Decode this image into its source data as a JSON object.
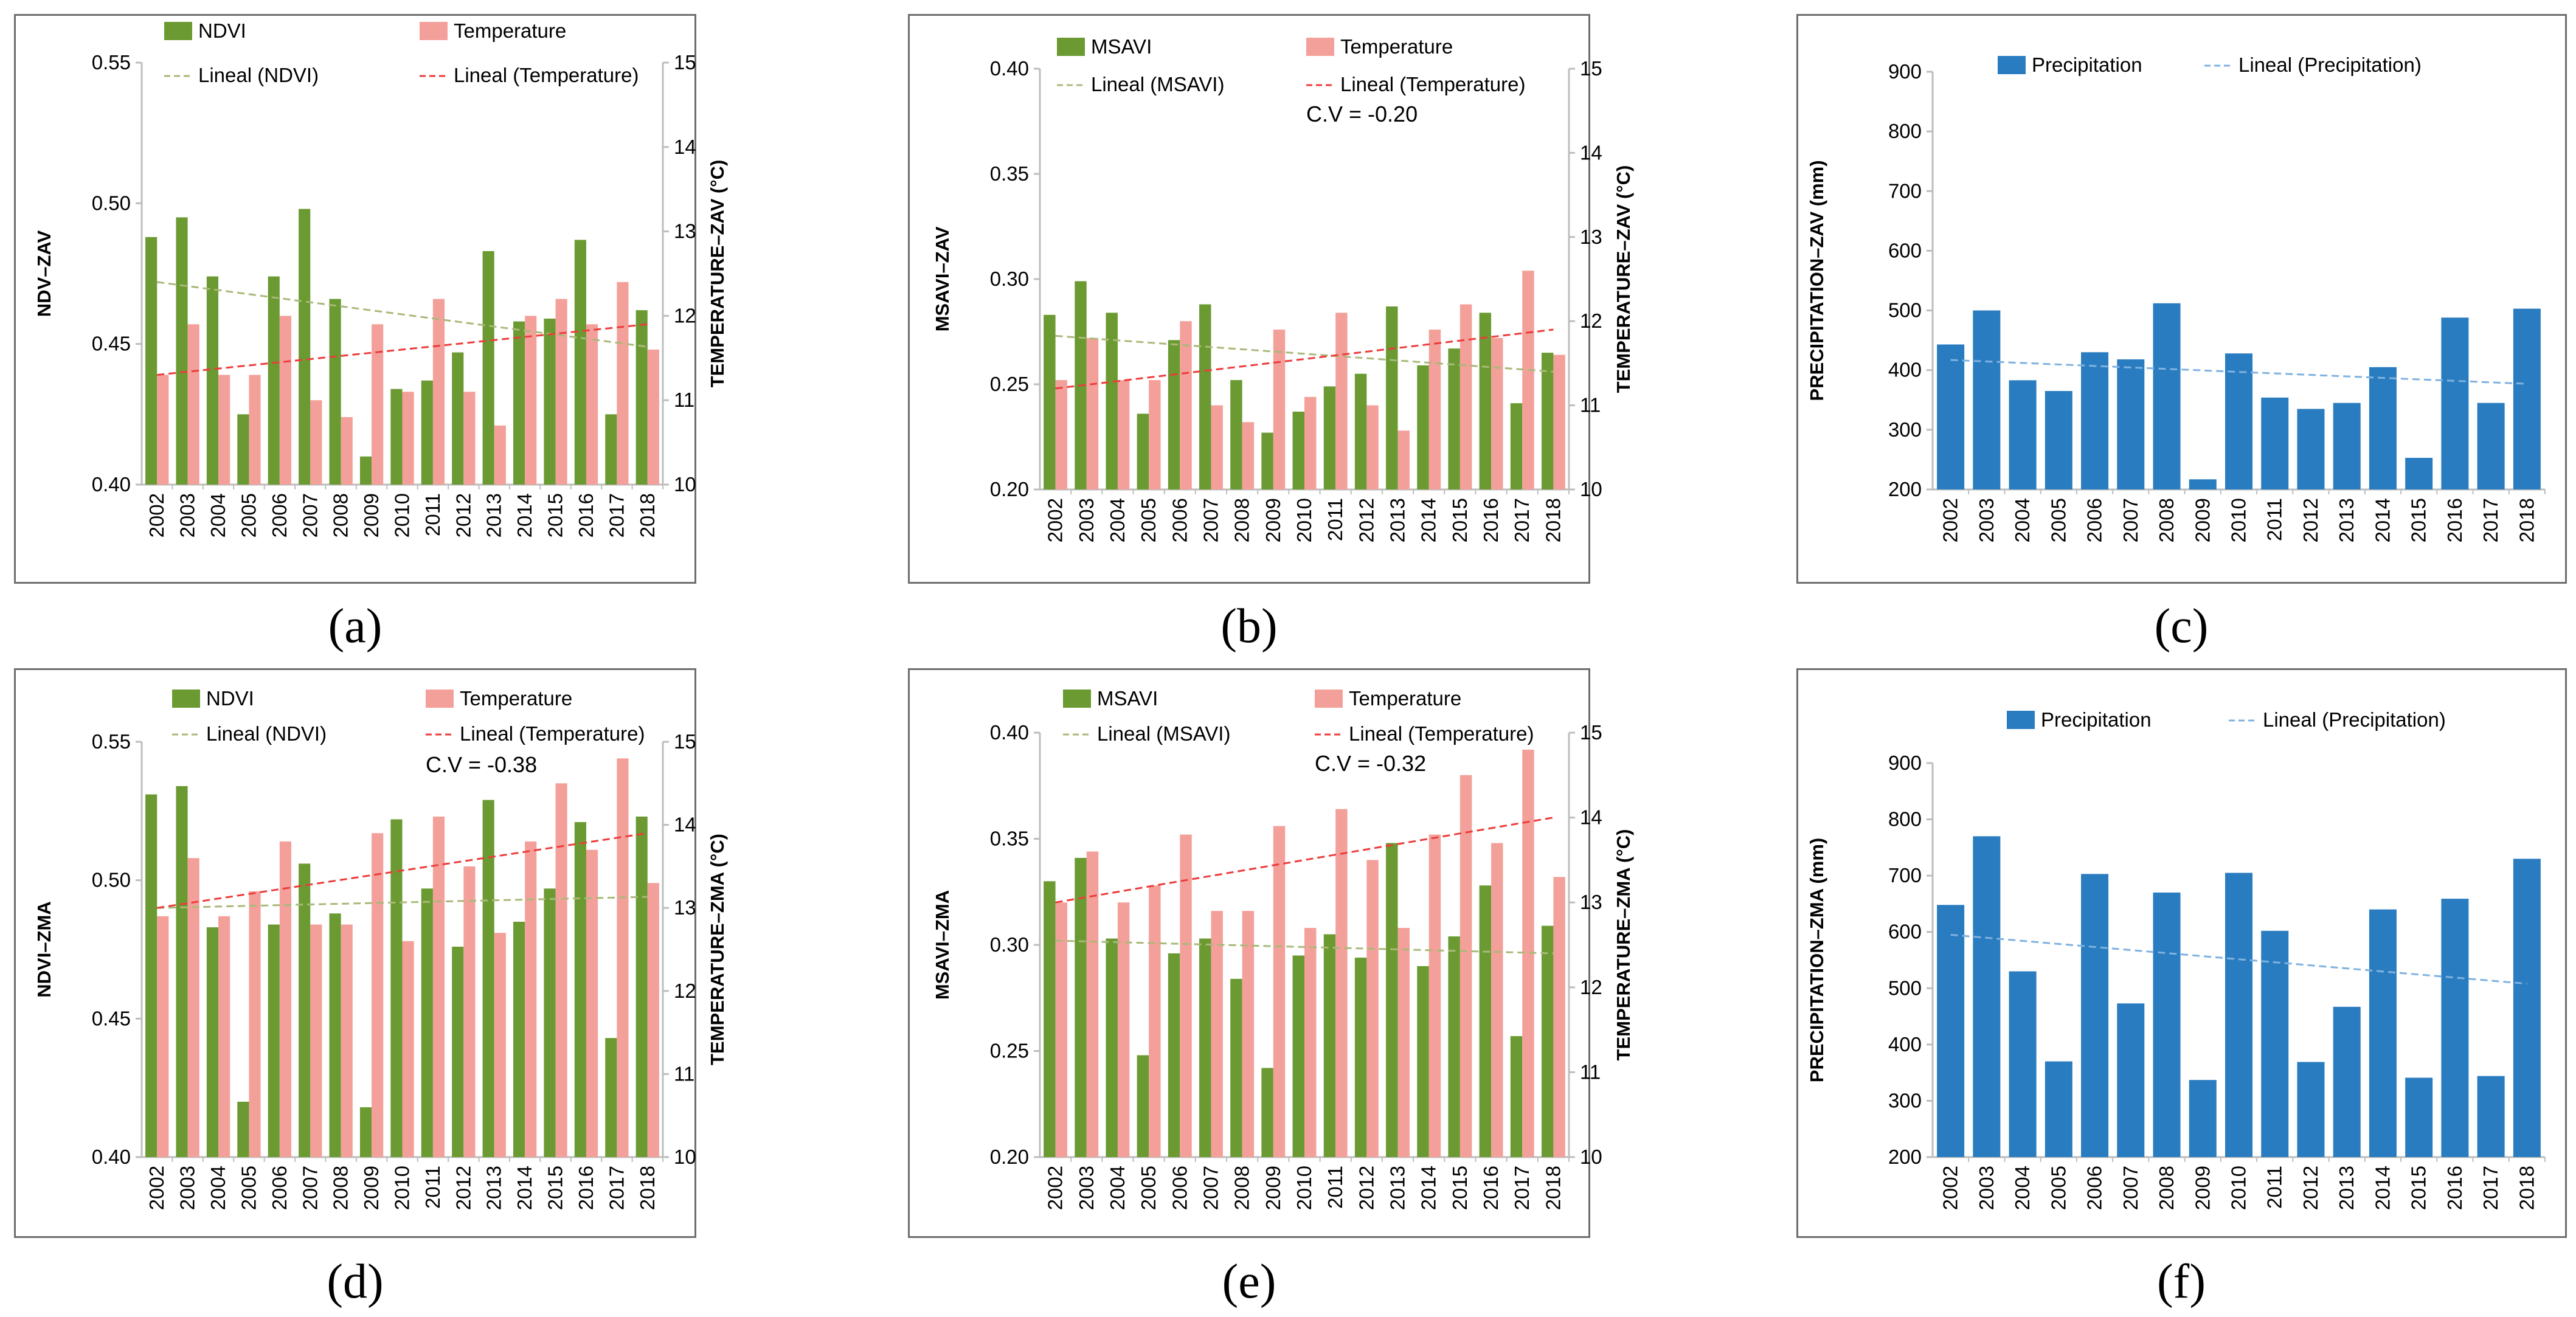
{
  "colors": {
    "ndvi": "#6a9a31",
    "msavi": "#6a9a31",
    "temperature": "#f4a09a",
    "precipitation": "#2a7cc0",
    "trend_veg": "#a9b97a",
    "trend_temp": "#ee3b3b",
    "trend_precip": "#7fb2e0"
  },
  "panel_labels": [
    "(a)",
    "(b)",
    "(c)",
    "(d)",
    "(e)",
    "(f)"
  ],
  "chart_data": [
    {
      "type": "bar",
      "panel": "a",
      "categories": [
        "2002",
        "2003",
        "2004",
        "2005",
        "2006",
        "2007",
        "2008",
        "2009",
        "2010",
        "2011",
        "2012",
        "2013",
        "2014",
        "2015",
        "2016",
        "2017",
        "2018"
      ],
      "ylabel": "NDV–ZAV",
      "y2label": "TEMPERATURE–ZAV (°C)",
      "ylim": [
        0.4,
        0.55
      ],
      "yticks": [
        "0.40",
        "0.45",
        "0.50",
        "0.55"
      ],
      "y2lim": [
        10,
        15
      ],
      "y2ticks": [
        "10",
        "11",
        "12",
        "13",
        "14",
        "15"
      ],
      "cv": "",
      "series": [
        {
          "name": "NDVI",
          "kind": "bar",
          "axis": "left",
          "color_key": "ndvi",
          "values": [
            0.488,
            0.495,
            0.474,
            0.425,
            0.474,
            0.498,
            0.466,
            0.41,
            0.434,
            0.437,
            0.447,
            0.483,
            0.458,
            0.459,
            0.487,
            0.425,
            0.462
          ]
        },
        {
          "name": "Temperature",
          "kind": "bar",
          "axis": "right",
          "color_key": "temperature",
          "values": [
            11.3,
            11.9,
            11.3,
            11.3,
            12.0,
            11.0,
            10.8,
            11.9,
            11.1,
            12.2,
            11.1,
            10.7,
            12.0,
            12.2,
            11.9,
            12.4,
            11.6
          ]
        },
        {
          "name": "Lineal (NDVI)",
          "kind": "trend",
          "axis": "left",
          "color_key": "trend_veg",
          "from": 0.472,
          "to": 0.449
        },
        {
          "name": "Lineal (Temperature)",
          "kind": "trend",
          "axis": "right",
          "color_key": "trend_temp",
          "from": 11.3,
          "to": 11.9
        }
      ]
    },
    {
      "type": "bar",
      "panel": "b",
      "categories": [
        "2002",
        "2003",
        "2004",
        "2005",
        "2006",
        "2007",
        "2008",
        "2009",
        "2010",
        "2011",
        "2012",
        "2013",
        "2014",
        "2015",
        "2016",
        "2017",
        "2018"
      ],
      "ylabel": "MSAVI–ZAV",
      "y2label": "TEMPERATURE–ZAV (°C)",
      "ylim": [
        0.2,
        0.4
      ],
      "yticks": [
        "0.20",
        "0.25",
        "0.30",
        "0.35",
        "0.40"
      ],
      "y2lim": [
        10,
        15
      ],
      "y2ticks": [
        "10",
        "11",
        "12",
        "13",
        "14",
        "15"
      ],
      "cv": "C.V = -0.20",
      "series": [
        {
          "name": "MSAVI",
          "kind": "bar",
          "axis": "left",
          "color_key": "msavi",
          "values": [
            0.283,
            0.299,
            0.284,
            0.236,
            0.271,
            0.288,
            0.252,
            0.227,
            0.237,
            0.249,
            0.255,
            0.287,
            0.259,
            0.267,
            0.284,
            0.241,
            0.265
          ]
        },
        {
          "name": "Temperature",
          "kind": "bar",
          "axis": "right",
          "color_key": "temperature",
          "values": [
            11.3,
            11.8,
            11.3,
            11.3,
            12.0,
            11.0,
            10.8,
            11.9,
            11.1,
            12.1,
            11.0,
            10.7,
            11.9,
            12.2,
            11.8,
            12.6,
            11.6
          ]
        },
        {
          "name": "Lineal (MSAVI)",
          "kind": "trend",
          "axis": "left",
          "color_key": "trend_veg",
          "from": 0.273,
          "to": 0.256
        },
        {
          "name": "Lineal (Temperature)",
          "kind": "trend",
          "axis": "right",
          "color_key": "trend_temp",
          "from": 11.2,
          "to": 11.9
        }
      ]
    },
    {
      "type": "bar",
      "panel": "c",
      "categories": [
        "2002",
        "2003",
        "2004",
        "2005",
        "2006",
        "2007",
        "2008",
        "2009",
        "2010",
        "2011",
        "2012",
        "2013",
        "2014",
        "2015",
        "2016",
        "2017",
        "2018"
      ],
      "ylabel": "PRECIPITATION–ZAV (mm)",
      "ylim": [
        200,
        900
      ],
      "yticks": [
        "200",
        "300",
        "400",
        "500",
        "600",
        "700",
        "800",
        "900"
      ],
      "series": [
        {
          "name": "Precipitation",
          "kind": "bar",
          "axis": "left",
          "color_key": "precipitation",
          "values": [
            443,
            500,
            383,
            365,
            430,
            418,
            512,
            217,
            428,
            354,
            335,
            345,
            405,
            253,
            488,
            345,
            503
          ]
        },
        {
          "name": "Lineal (Precipitation)",
          "kind": "trend",
          "axis": "left",
          "color_key": "trend_precip",
          "from": 417,
          "to": 377
        }
      ]
    },
    {
      "type": "bar",
      "panel": "d",
      "categories": [
        "2002",
        "2003",
        "2004",
        "2005",
        "2006",
        "2007",
        "2008",
        "2009",
        "2010",
        "2011",
        "2012",
        "2013",
        "2014",
        "2015",
        "2016",
        "2017",
        "2018"
      ],
      "ylabel": "NDVI–ZMA",
      "y2label": "TEMPERATURE–ZMA (°C)",
      "ylim": [
        0.4,
        0.55
      ],
      "yticks": [
        "0.40",
        "0.45",
        "0.50",
        "0.55"
      ],
      "y2lim": [
        10,
        15
      ],
      "y2ticks": [
        "10",
        "11",
        "12",
        "13",
        "14",
        "15"
      ],
      "cv": "C.V = -0.38",
      "series": [
        {
          "name": "NDVI",
          "kind": "bar",
          "axis": "left",
          "color_key": "ndvi",
          "values": [
            0.531,
            0.534,
            0.483,
            0.42,
            0.484,
            0.506,
            0.488,
            0.418,
            0.522,
            0.497,
            0.476,
            0.529,
            0.485,
            0.497,
            0.521,
            0.443,
            0.523
          ]
        },
        {
          "name": "Temperature",
          "kind": "bar",
          "axis": "right",
          "color_key": "temperature",
          "values": [
            12.9,
            13.6,
            12.9,
            13.2,
            13.8,
            12.8,
            12.8,
            13.9,
            12.6,
            14.1,
            13.5,
            12.7,
            13.8,
            14.5,
            13.7,
            14.8,
            13.3
          ]
        },
        {
          "name": "Lineal (NDVI)",
          "kind": "trend",
          "axis": "left",
          "color_key": "trend_veg",
          "from": 0.49,
          "to": 0.494
        },
        {
          "name": "Lineal (Temperature)",
          "kind": "trend",
          "axis": "right",
          "color_key": "trend_temp",
          "from": 13.0,
          "to": 13.9
        }
      ]
    },
    {
      "type": "bar",
      "panel": "e",
      "categories": [
        "2002",
        "2003",
        "2004",
        "2005",
        "2006",
        "2007",
        "2008",
        "2009",
        "2010",
        "2011",
        "2012",
        "2013",
        "2014",
        "2015",
        "2016",
        "2017",
        "2018"
      ],
      "ylabel": "MSAVI–ZMA",
      "y2label": "TEMPERATURE–ZMA (°C)",
      "ylim": [
        0.2,
        0.4
      ],
      "yticks": [
        "0.20",
        "0.25",
        "0.30",
        "0.35",
        "0.40"
      ],
      "y2lim": [
        10,
        15
      ],
      "y2ticks": [
        "10",
        "11",
        "12",
        "13",
        "14",
        "15"
      ],
      "cv": "C.V = -0.32",
      "series": [
        {
          "name": "MSAVI",
          "kind": "bar",
          "axis": "left",
          "color_key": "msavi",
          "values": [
            0.33,
            0.341,
            0.303,
            0.248,
            0.296,
            0.303,
            0.284,
            0.242,
            0.295,
            0.305,
            0.294,
            0.348,
            0.29,
            0.304,
            0.328,
            0.257,
            0.309
          ]
        },
        {
          "name": "Temperature",
          "kind": "bar",
          "axis": "right",
          "color_key": "temperature",
          "values": [
            13.0,
            13.6,
            13.0,
            13.2,
            13.8,
            12.9,
            12.9,
            13.9,
            12.7,
            14.1,
            13.5,
            12.7,
            13.8,
            14.5,
            13.7,
            14.8,
            13.3
          ]
        },
        {
          "name": "Lineal (MSAVI)",
          "kind": "trend",
          "axis": "left",
          "color_key": "trend_veg",
          "from": 0.302,
          "to": 0.296
        },
        {
          "name": "Lineal (Temperature)",
          "kind": "trend",
          "axis": "right",
          "color_key": "trend_temp",
          "from": 13.0,
          "to": 14.0
        }
      ]
    },
    {
      "type": "bar",
      "panel": "f",
      "categories": [
        "2002",
        "2003",
        "2004",
        "2005",
        "2006",
        "2007",
        "2008",
        "2009",
        "2010",
        "2011",
        "2012",
        "2013",
        "2014",
        "2015",
        "2016",
        "2017",
        "2018"
      ],
      "ylabel": "PRECIPITATION–ZMA (mm)",
      "ylim": [
        200,
        900
      ],
      "yticks": [
        "200",
        "300",
        "400",
        "500",
        "600",
        "700",
        "800",
        "900"
      ],
      "series": [
        {
          "name": "Precipitation",
          "kind": "bar",
          "axis": "left",
          "color_key": "precipitation",
          "values": [
            648,
            770,
            530,
            370,
            703,
            473,
            670,
            337,
            705,
            602,
            369,
            467,
            640,
            341,
            659,
            344,
            730
          ]
        },
        {
          "name": "Lineal (Precipitation)",
          "kind": "trend",
          "axis": "left",
          "color_key": "trend_precip",
          "from": 595,
          "to": 508
        }
      ]
    }
  ]
}
